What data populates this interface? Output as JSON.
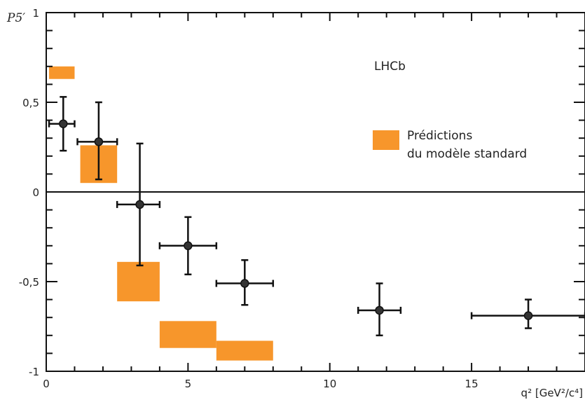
{
  "chart_data": {
    "type": "scatter",
    "experiment_label": "LHCb",
    "ylabel": "P5′",
    "xlabel": "q² [GeV²/c⁴]",
    "xlim": [
      0,
      19
    ],
    "ylim": [
      -1,
      1
    ],
    "x_ticks": [
      0,
      5,
      10,
      15
    ],
    "x_tick_labels": [
      "0",
      "5",
      "10",
      "15"
    ],
    "y_ticks": [
      -1,
      -0.5,
      0,
      0.5,
      1
    ],
    "y_tick_labels": [
      "-1",
      "-0,5",
      "0",
      "0,5",
      "1"
    ],
    "zero_line": true,
    "legend": {
      "placement": "right",
      "label_line1": "Prédictions",
      "label_line2": "du modèle standard"
    },
    "colors": {
      "prediction": "#f7962b",
      "data": "#111111"
    },
    "data_points": [
      {
        "x": 0.6,
        "x_low": 0.1,
        "x_high": 1.0,
        "y": 0.38,
        "y_low": 0.23,
        "y_high": 0.53
      },
      {
        "x": 1.85,
        "x_low": 1.1,
        "x_high": 2.5,
        "y": 0.28,
        "y_low": 0.07,
        "y_high": 0.5
      },
      {
        "x": 3.3,
        "x_low": 2.5,
        "x_high": 4.0,
        "y": -0.07,
        "y_low": -0.41,
        "y_high": 0.27
      },
      {
        "x": 5.0,
        "x_low": 4.0,
        "x_high": 6.0,
        "y": -0.3,
        "y_low": -0.46,
        "y_high": -0.14
      },
      {
        "x": 7.0,
        "x_low": 6.0,
        "x_high": 8.0,
        "y": -0.51,
        "y_low": -0.63,
        "y_high": -0.38
      },
      {
        "x": 11.75,
        "x_low": 11.0,
        "x_high": 12.5,
        "y": -0.66,
        "y_low": -0.8,
        "y_high": -0.51
      },
      {
        "x": 17.0,
        "x_low": 15.0,
        "x_high": 19.0,
        "y": -0.69,
        "y_low": -0.76,
        "y_high": -0.6
      }
    ],
    "predictions": [
      {
        "x_low": 0.1,
        "x_high": 1.0,
        "y_low": 0.63,
        "y_high": 0.7
      },
      {
        "x_low": 1.2,
        "x_high": 2.5,
        "y_low": 0.05,
        "y_high": 0.26
      },
      {
        "x_low": 2.5,
        "x_high": 4.0,
        "y_low": -0.61,
        "y_high": -0.39
      },
      {
        "x_low": 4.0,
        "x_high": 6.0,
        "y_low": -0.87,
        "y_high": -0.72
      },
      {
        "x_low": 6.0,
        "x_high": 8.0,
        "y_low": -0.94,
        "y_high": -0.83
      }
    ]
  }
}
